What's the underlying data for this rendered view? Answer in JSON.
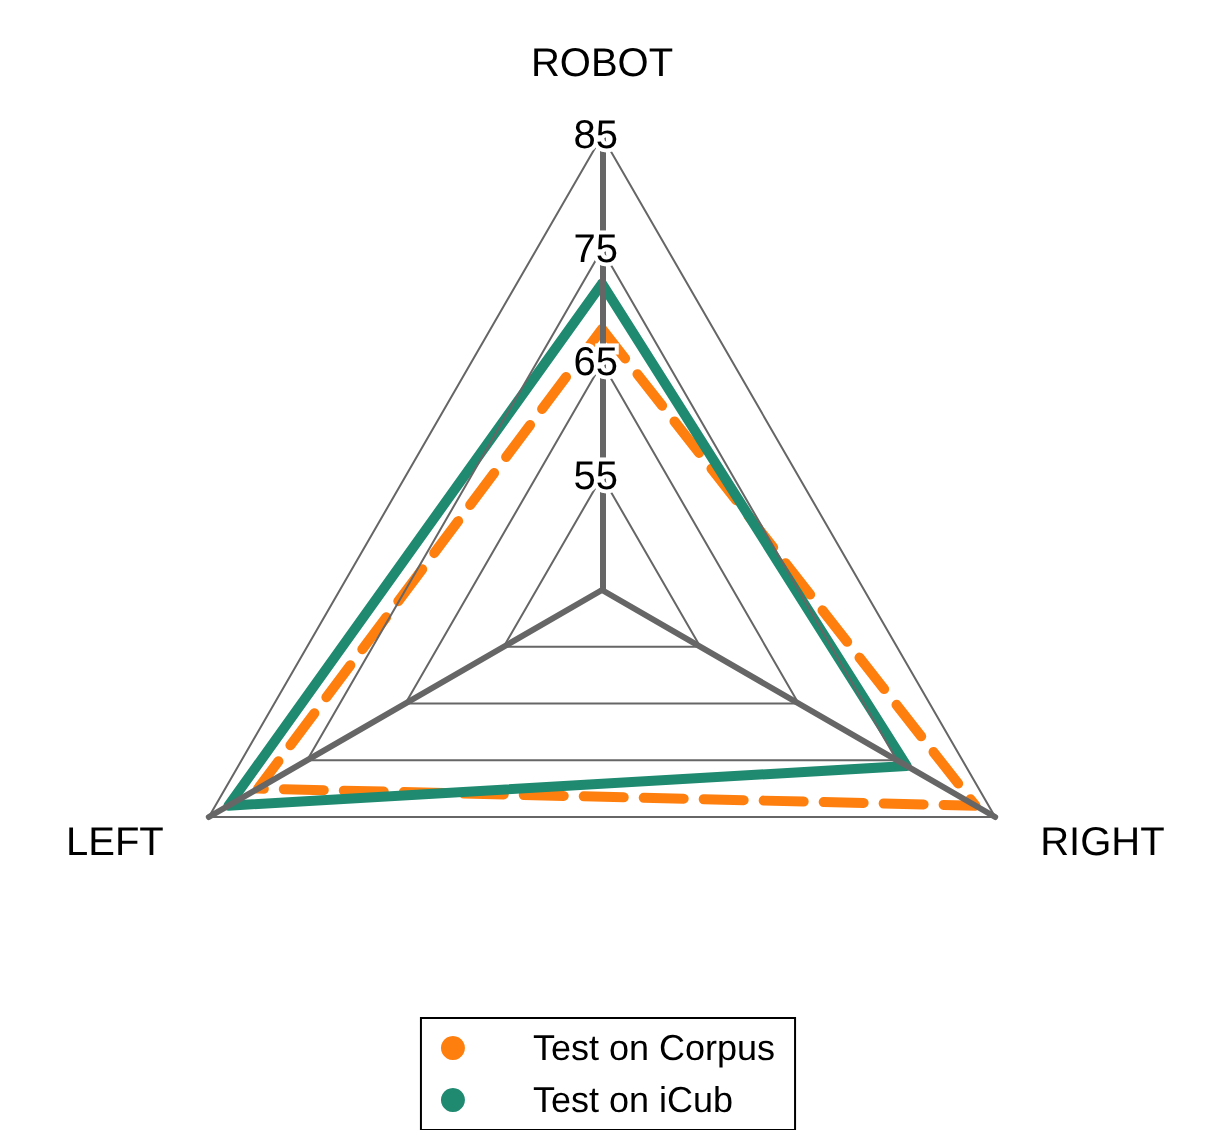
{
  "chart_data": {
    "type": "radar",
    "categories": [
      "ROBOT",
      "RIGHT",
      "LEFT"
    ],
    "series": [
      {
        "name": "Test on Corpus",
        "color": "#ff7f0e",
        "values": [
          68,
          83,
          80
        ],
        "line_style": "dashed"
      },
      {
        "name": "Test on iCub",
        "color": "#1f8a70",
        "values": [
          72,
          76,
          83
        ],
        "line_style": "solid"
      }
    ],
    "ylim": [
      45,
      85
    ],
    "yticks": [
      55,
      65,
      75,
      85
    ],
    "legend": "bottom",
    "marker": "circle",
    "grid": true
  }
}
